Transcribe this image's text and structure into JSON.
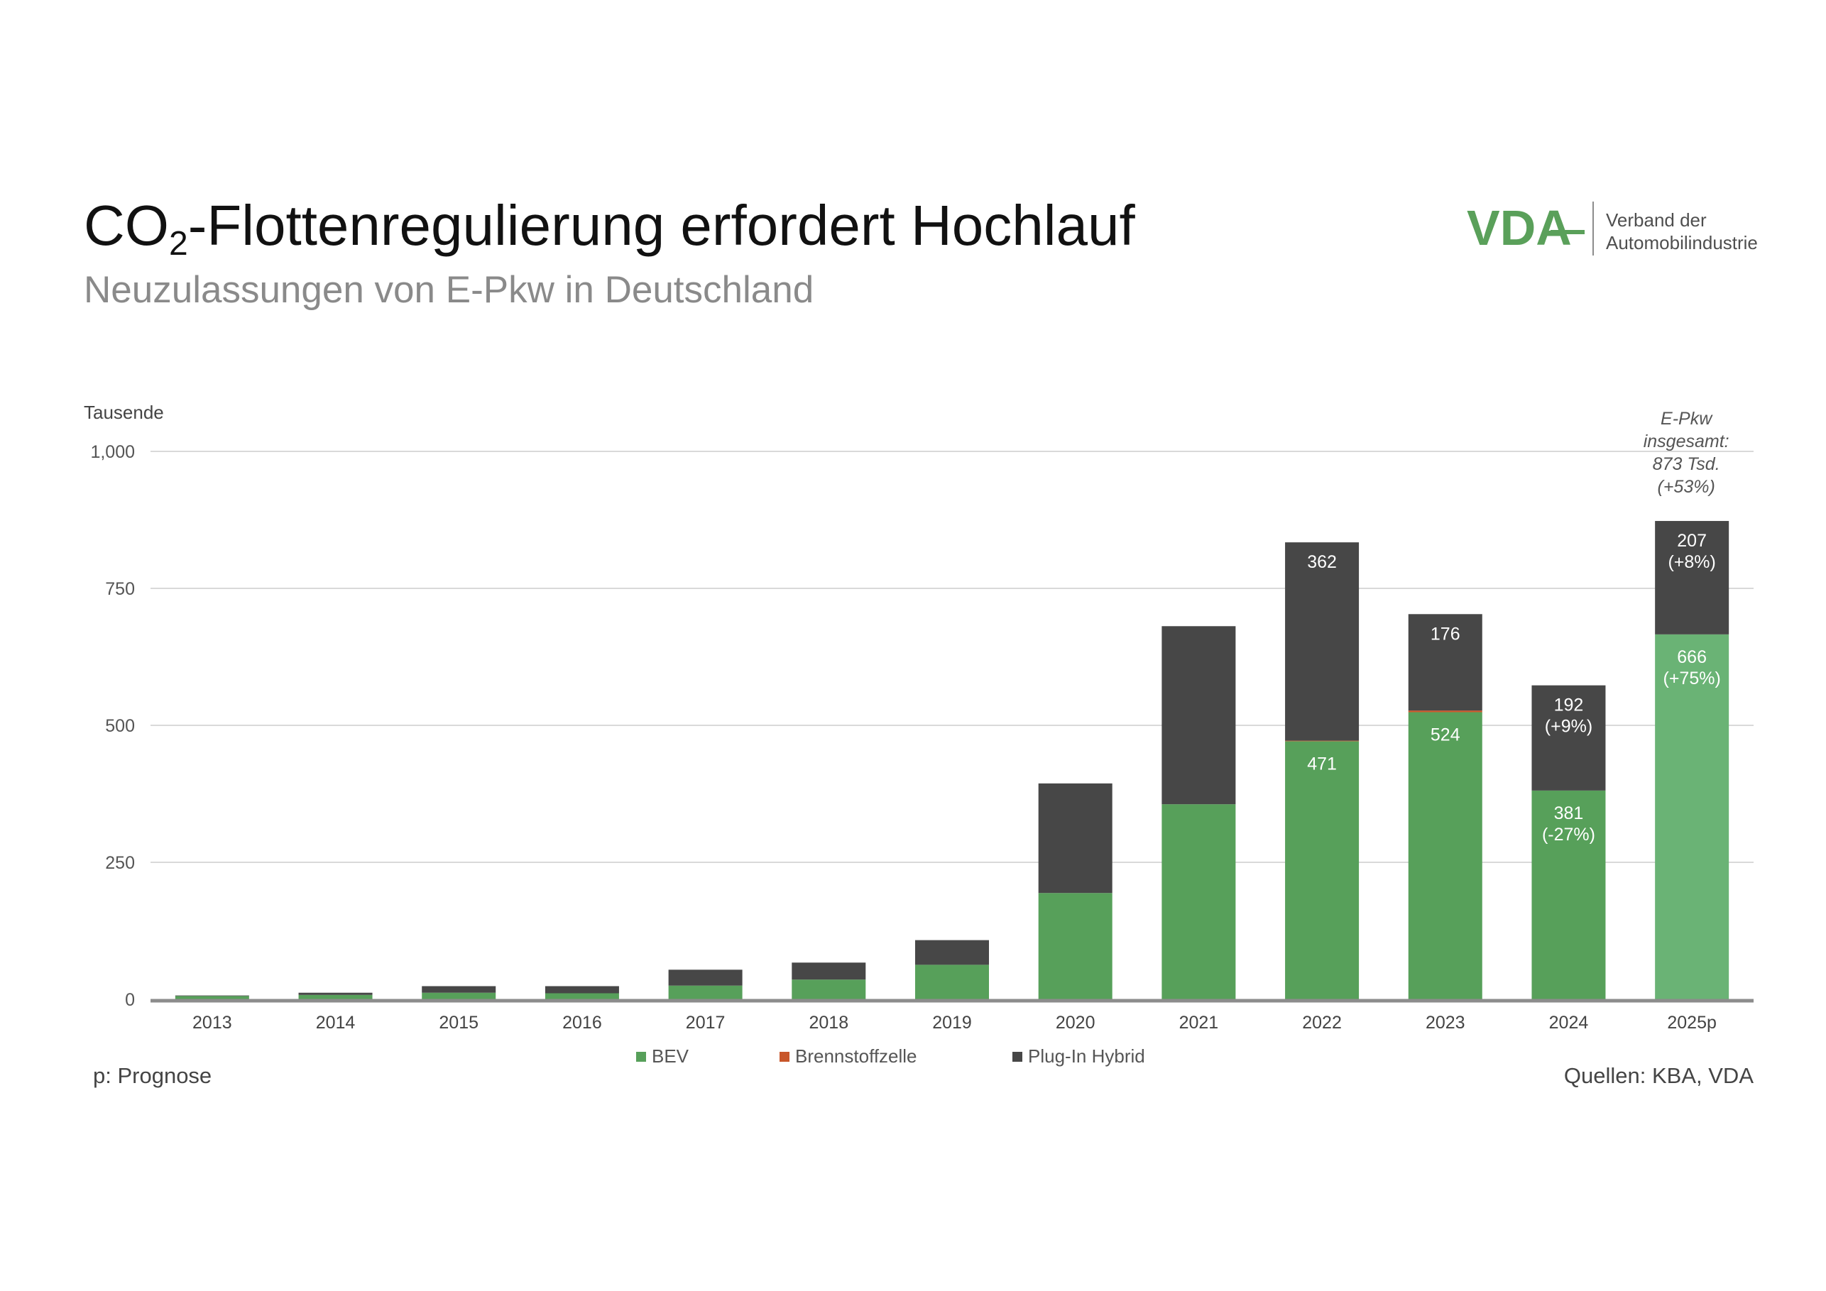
{
  "header": {
    "title_prefix": "CO",
    "title_subscript": "2",
    "title_suffix": "-Flottenregulierung erfordert Hochlauf",
    "subtitle": "Neuzulassungen von E-Pkw in Deutschland"
  },
  "logo": {
    "mark": "VDA",
    "text_line1": "Verband der",
    "text_line2": "Automobilindustrie",
    "color": "#5aa05a"
  },
  "colors": {
    "bev": "#57a05a",
    "bev_forecast": "#6ab375",
    "fuel_cell": "#c8562a",
    "phev": "#474747",
    "grid": "#d9d9d9",
    "axis": "#8c8c8c"
  },
  "chart_data": {
    "type": "bar",
    "stacked": true,
    "ylabel": "Tausende",
    "ylim": [
      0,
      1000
    ],
    "yticks": [
      0,
      250,
      500,
      750,
      1000
    ],
    "ytick_labels": [
      "0",
      "250",
      "500",
      "750",
      "1,000"
    ],
    "grid": true,
    "legend_position": "bottom",
    "categories": [
      "2013",
      "2014",
      "2015",
      "2016",
      "2017",
      "2018",
      "2019",
      "2020",
      "2021",
      "2022",
      "2023",
      "2024",
      "2025p"
    ],
    "series": [
      {
        "name": "BEV",
        "values": [
          6,
          8,
          12,
          11,
          25,
          36,
          63,
          194,
          356,
          471,
          524,
          381,
          666
        ]
      },
      {
        "name": "Brennstoffzelle",
        "values": [
          0,
          0,
          0,
          0,
          0,
          0,
          0,
          0,
          0,
          1,
          3,
          0,
          0
        ]
      },
      {
        "name": "Plug-In Hybrid",
        "values": [
          1,
          4,
          12,
          13,
          29,
          31,
          45,
          200,
          325,
          362,
          176,
          192,
          207
        ]
      }
    ],
    "data_labels": {
      "BEV": [
        "",
        "",
        "",
        "",
        "",
        "",
        "",
        "",
        "",
        "471",
        "524",
        "381\n(-27%)",
        "666\n(+75%)"
      ],
      "Plug-In Hybrid": [
        "",
        "",
        "",
        "",
        "",
        "",
        "",
        "",
        "",
        "362",
        "176",
        "192\n(+9%)",
        "207\n(+8%)"
      ]
    },
    "annotation": "E-Pkw\ninsgesamt:\n873 Tsd.\n(+53%)"
  },
  "footer": {
    "note": "p: Prognose",
    "source": "Quellen: KBA, VDA"
  }
}
